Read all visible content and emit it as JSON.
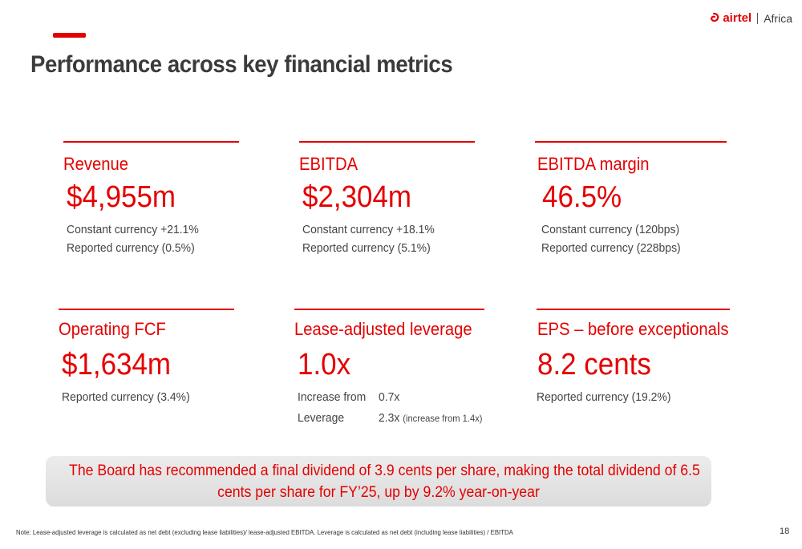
{
  "header": {
    "title": "Performance across key financial metrics",
    "logo_brand": "airtel",
    "logo_region": "Africa"
  },
  "metrics": [
    {
      "label": "Revenue",
      "value": "$4,955m",
      "lines": [
        "Constant currency +21.1%",
        "Reported currency (0.5%)"
      ]
    },
    {
      "label": "EBITDA",
      "value": "$2,304m",
      "lines": [
        "Constant currency +18.1%",
        "Reported currency (5.1%)"
      ]
    },
    {
      "label": "EBITDA margin",
      "value": "46.5%",
      "lines": [
        "Constant currency (120bps)",
        "Reported currency (228bps)"
      ]
    },
    {
      "label": "Operating FCF",
      "value": "$1,634m",
      "lines": [
        "Reported currency (3.4%)"
      ]
    },
    {
      "label": "Lease-adjusted leverage",
      "value": "1.0x",
      "increase_label": "Increase from",
      "increase_value": "0.7x",
      "leverage_label": "Leverage",
      "leverage_value": "2.3x",
      "leverage_note": "(increase from 1.4x)"
    },
    {
      "label": "EPS – before exceptionals",
      "value": "8.2 cents",
      "lines": [
        "Reported currency (19.2%)"
      ]
    }
  ],
  "board_message": {
    "line1": "The Board has recommended a final dividend of 3.9 cents per share, making the total dividend of 6.5",
    "line2": "cents per share for FY’25, up by 9.2% year-on-year"
  },
  "footnote": "Note: Lease-adjusted leverage is calculated as net debt (excluding lease liabilities)/ lease-adjusted EBITDA. Leverage is calculated as net debt (including lease liabilities) / EBITDA",
  "page_number": "18",
  "colors": {
    "accent": "#e40000",
    "text": "#3b3b3b",
    "box": "#e3e3e3"
  }
}
